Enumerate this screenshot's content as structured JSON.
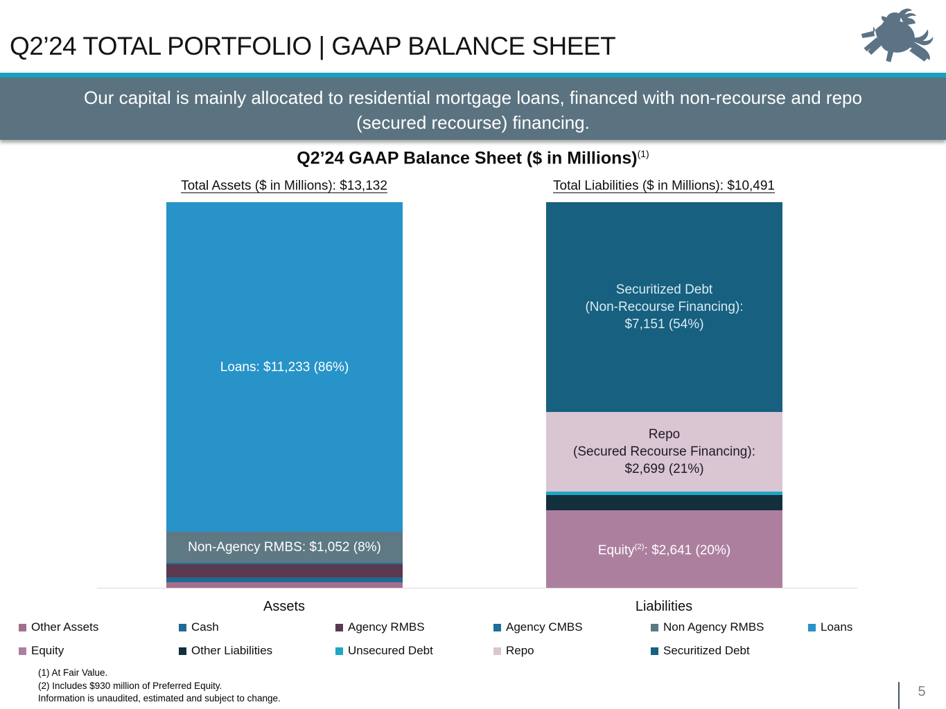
{
  "header": {
    "title": "Q2’24 TOTAL PORTFOLIO | GAAP BALANCE SHEET"
  },
  "banner": {
    "line1": "Our capital is mainly allocated to residential mortgage loans, financed with non-recourse and repo",
    "line2": "(secured recourse) financing."
  },
  "chart_data": {
    "type": "bar",
    "subtype": "stacked-bar",
    "unit": "$ in Millions",
    "title": "Q2’24 GAAP Balance Sheet ($ in Millions)",
    "title_footnote_marker": "(1)",
    "total_assets_header": "Total Assets ($ in Millions): $13,132",
    "total_liabilities_header": "Total Liabilities ($ in Millions): $10,491",
    "total_assets": 13132,
    "total_liabilities": 10491,
    "categories": [
      "Assets",
      "Liabilities"
    ],
    "grid": "off",
    "bars": [
      {
        "category": "Assets",
        "total": 13132,
        "segments": [
          {
            "name": "Loans",
            "value": 11233,
            "pct": "86%",
            "color": "#2793C9",
            "label": "Loans: $11,233 (86%)"
          },
          {
            "name": "Non Agency RMBS",
            "value": 1052,
            "pct": "8%",
            "color": "#5E7884",
            "label": "Non-Agency RMBS: $1,052 (8%)"
          },
          {
            "name": "Agency CMBS",
            "value": 50,
            "color": "#1F6E9E",
            "label": ""
          },
          {
            "name": "Agency RMBS",
            "value": 450,
            "color": "#5A394E",
            "label": ""
          },
          {
            "name": "Cash",
            "value": 165,
            "color": "#1F6A94",
            "label": ""
          },
          {
            "name": "Other Assets",
            "value": 182,
            "color": "#A36F8F",
            "label": ""
          }
        ]
      },
      {
        "category": "Liabilities",
        "total": 13132,
        "segments": [
          {
            "name": "Securitized Debt",
            "value": 7151,
            "pct": "54%",
            "color": "#17607F",
            "label_lines": [
              "Securitized Debt",
              "(Non-Recourse Financing):",
              "$7,151 (54%)"
            ]
          },
          {
            "name": "Repo",
            "value": 2699,
            "pct": "21%",
            "color": "#DAC5D3",
            "label_lines": [
              "Repo",
              "(Secured Recourse Financing):",
              "$2,699 (21%)"
            ]
          },
          {
            "name": "Unsecured Debt",
            "value": 118,
            "color": "#1CA8C4",
            "label": ""
          },
          {
            "name": "Other Liabilities",
            "value": 523,
            "color": "#132E3D",
            "label": ""
          },
          {
            "name": "Equity",
            "value": 2641,
            "pct": "20%",
            "color": "#AD7F9F",
            "label_parts": {
              "name": "Equity",
              "sup": "(2)",
              "rest": ": $2,641 (20%)"
            }
          }
        ]
      }
    ]
  },
  "legend": {
    "rows": [
      {
        "items": [
          {
            "label": "Other Assets",
            "color": "#A36F8F"
          },
          {
            "label": "Cash",
            "color": "#1F6A94"
          },
          {
            "label": "Agency RMBS",
            "color": "#5A394E"
          },
          {
            "label": "Agency CMBS",
            "color": "#1F6E9E"
          },
          {
            "label": "Non Agency RMBS",
            "color": "#5E7884"
          },
          {
            "label": "Loans",
            "color": "#2793C9"
          }
        ]
      },
      {
        "items": [
          {
            "label": "Equity",
            "color": "#AD7F9F"
          },
          {
            "label": "Other Liabilities",
            "color": "#132E3D"
          },
          {
            "label": "Unsecured Debt",
            "color": "#1CA8C4"
          },
          {
            "label": "Repo",
            "color": "#DAC5D3"
          },
          {
            "label": "Securitized Debt",
            "color": "#17607F"
          }
        ]
      }
    ]
  },
  "footnotes": {
    "line1": "(1) At Fair Value.",
    "line2": "(2) Includes $930 million of Preferred Equity.",
    "line3": "Information is unaudited, estimated and subject to change."
  },
  "page_number": "5",
  "colors": {
    "accent_teal": "#18A2BC",
    "banner_gray": "#5B7380",
    "logo_slate": "#5B7384",
    "axis_gray": "#D9D9D9"
  }
}
